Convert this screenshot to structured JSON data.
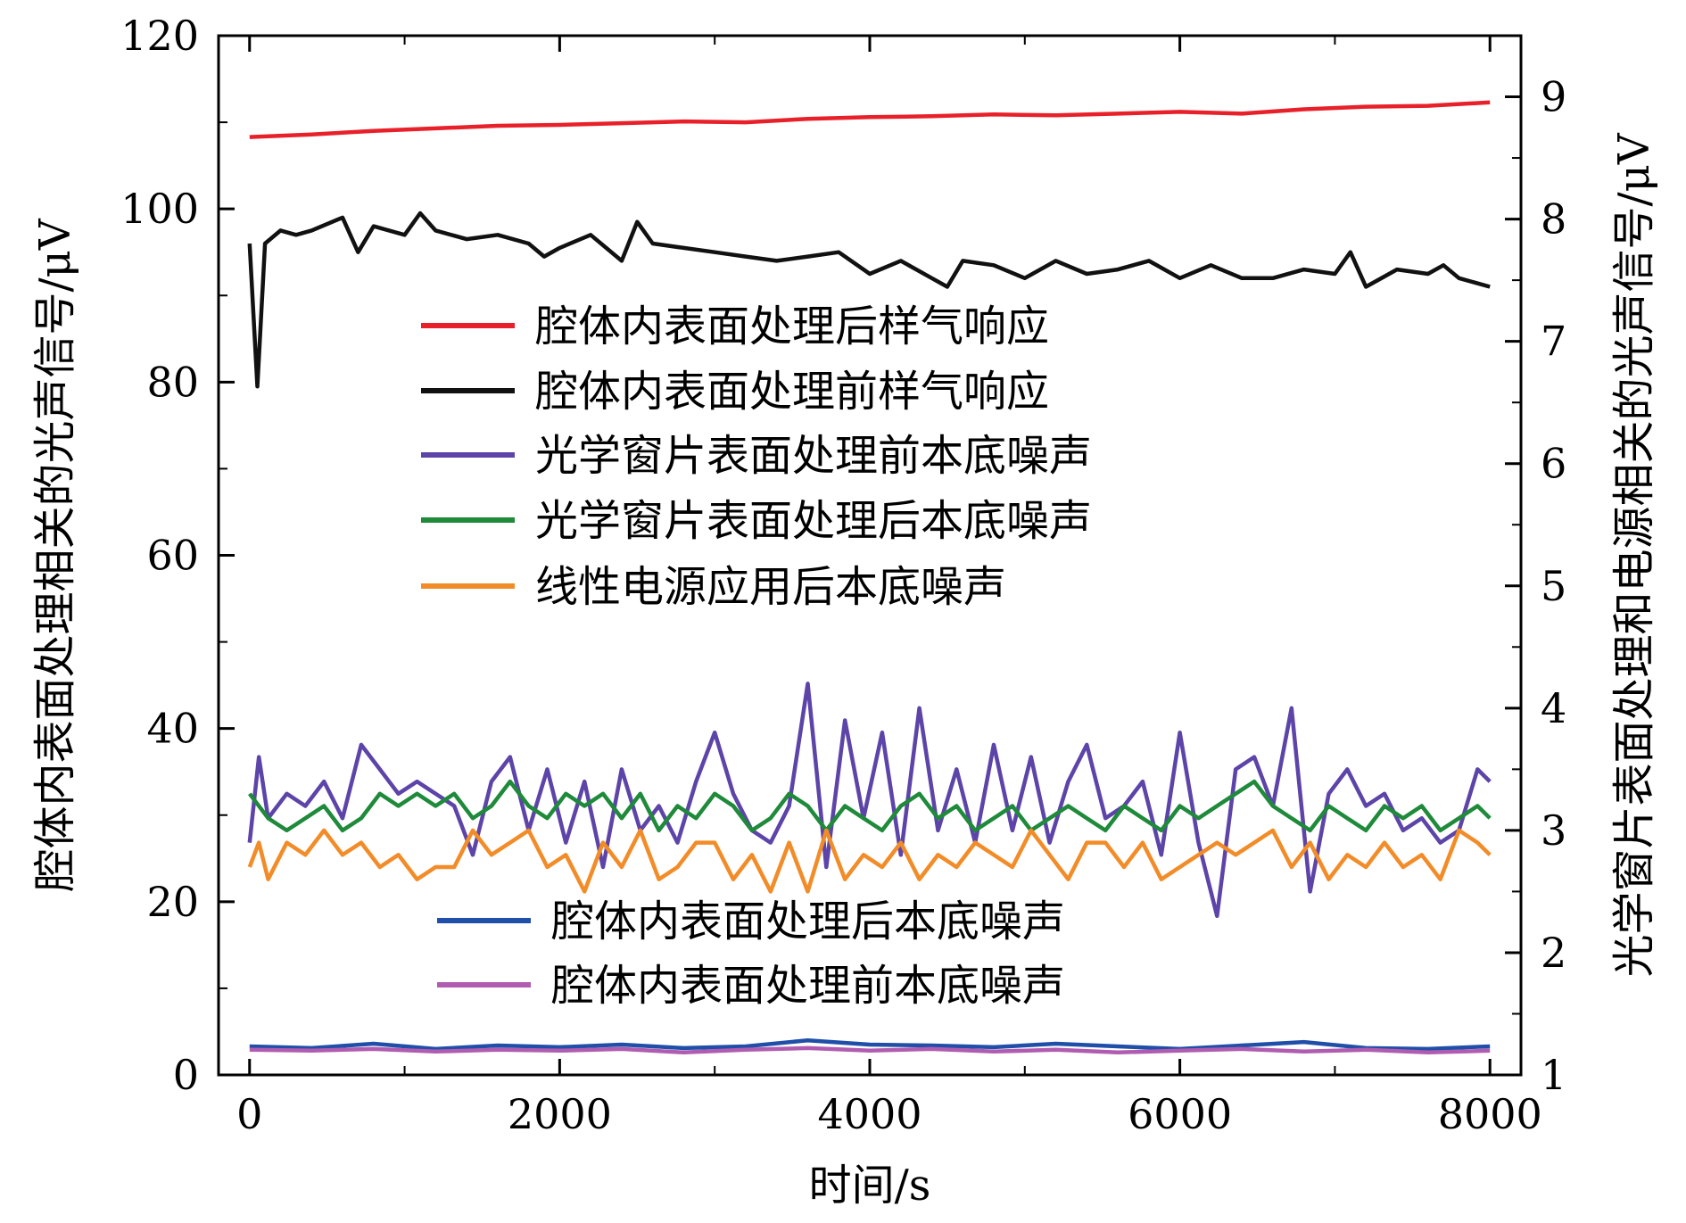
{
  "chart_data": {
    "type": "line",
    "xlabel": "时间/s",
    "ylabel_left": "腔体内表面处理相关的光声信号/μV",
    "ylabel_right": "光学窗片表面处理和电源相关的光声信号/μV",
    "xlim": [
      -200,
      8200
    ],
    "ylim_left": [
      0,
      120
    ],
    "ylim_right": [
      1,
      9.5
    ],
    "x_ticks": [
      0,
      2000,
      4000,
      6000,
      8000
    ],
    "y_ticks_left": [
      0,
      20,
      40,
      60,
      80,
      100,
      120
    ],
    "y_ticks_right": [
      1,
      2,
      3,
      4,
      5,
      6,
      7,
      8,
      9
    ],
    "x_tick_labels": [
      "0",
      "2000",
      "4000",
      "6000",
      "8000"
    ],
    "y_tick_labels_left": [
      "0",
      "20",
      "40",
      "60",
      "80",
      "100",
      "120"
    ],
    "y_tick_labels_right": [
      "1",
      "2",
      "3",
      "4",
      "5",
      "6",
      "7",
      "8",
      "9"
    ],
    "grid": false,
    "series": [
      {
        "name": "腔体内表面处理后样气响应",
        "color": "#e8202a",
        "axis": "left",
        "x": [
          0,
          400,
          800,
          1200,
          1600,
          2000,
          2400,
          2800,
          3200,
          3600,
          4000,
          4400,
          4800,
          5200,
          5600,
          6000,
          6400,
          6800,
          7200,
          7600,
          8000
        ],
        "values": [
          108.3,
          108.6,
          109.0,
          109.3,
          109.6,
          109.7,
          109.9,
          110.1,
          110.0,
          110.4,
          110.6,
          110.7,
          110.9,
          110.8,
          111.0,
          111.2,
          111.0,
          111.5,
          111.8,
          111.9,
          112.3
        ]
      },
      {
        "name": "腔体内表面处理前样气响应",
        "color": "#111111",
        "axis": "left",
        "x": [
          0,
          50,
          100,
          200,
          300,
          400,
          600,
          700,
          800,
          1000,
          1100,
          1200,
          1400,
          1600,
          1800,
          1900,
          2000,
          2200,
          2400,
          2500,
          2600,
          2800,
          3000,
          3200,
          3400,
          3600,
          3800,
          4000,
          4200,
          4400,
          4500,
          4600,
          4800,
          5000,
          5200,
          5400,
          5600,
          5800,
          6000,
          6200,
          6400,
          6600,
          6800,
          7000,
          7100,
          7200,
          7400,
          7600,
          7700,
          7800,
          8000
        ],
        "values": [
          96,
          79.5,
          96,
          97.5,
          97,
          97.5,
          99,
          95,
          98,
          97,
          99.5,
          97.5,
          96.5,
          97,
          96,
          94.5,
          95.5,
          97,
          94,
          98.5,
          96,
          95.5,
          95,
          94.5,
          94,
          94.5,
          95,
          92.5,
          94,
          92,
          91,
          94,
          93.5,
          92,
          94,
          92.5,
          93,
          94,
          92,
          93.5,
          92,
          92,
          93,
          92.5,
          95,
          91,
          93,
          92.5,
          93.5,
          92,
          91
        ]
      },
      {
        "name": "光学窗片表面处理前本底噪声",
        "color": "#5d44a8",
        "axis": "right",
        "x": [
          0,
          60,
          120,
          240,
          360,
          480,
          600,
          720,
          840,
          960,
          1080,
          1200,
          1320,
          1440,
          1560,
          1680,
          1800,
          1920,
          2040,
          2160,
          2280,
          2400,
          2520,
          2640,
          2760,
          2880,
          3000,
          3120,
          3240,
          3360,
          3480,
          3600,
          3720,
          3840,
          3960,
          4080,
          4200,
          4320,
          4440,
          4560,
          4680,
          4800,
          4920,
          5040,
          5160,
          5280,
          5400,
          5520,
          5640,
          5760,
          5880,
          6000,
          6120,
          6240,
          6360,
          6480,
          6600,
          6720,
          6840,
          6960,
          7080,
          7200,
          7320,
          7440,
          7560,
          7680,
          7800,
          7920,
          8000
        ],
        "values": [
          2.9,
          3.6,
          3.1,
          3.3,
          3.2,
          3.4,
          3.1,
          3.7,
          3.5,
          3.3,
          3.4,
          3.3,
          3.2,
          2.8,
          3.4,
          3.6,
          3.0,
          3.5,
          2.9,
          3.4,
          2.7,
          3.5,
          3.0,
          3.2,
          2.9,
          3.4,
          3.8,
          3.3,
          3.0,
          2.9,
          3.2,
          4.2,
          2.7,
          3.9,
          3.1,
          3.8,
          2.8,
          4.0,
          3.0,
          3.5,
          2.9,
          3.7,
          3.0,
          3.6,
          2.9,
          3.4,
          3.7,
          3.1,
          3.2,
          3.4,
          2.8,
          3.8,
          2.9,
          2.3,
          3.5,
          3.6,
          3.2,
          4.0,
          2.5,
          3.3,
          3.5,
          3.2,
          3.3,
          3.0,
          3.1,
          2.9,
          3.0,
          3.5,
          3.4
        ]
      },
      {
        "name": "光学窗片表面处理后本底噪声",
        "color": "#1e8a3a",
        "axis": "right",
        "x": [
          0,
          120,
          240,
          360,
          480,
          600,
          720,
          840,
          960,
          1080,
          1200,
          1320,
          1440,
          1560,
          1680,
          1800,
          1920,
          2040,
          2160,
          2280,
          2400,
          2520,
          2640,
          2760,
          2880,
          3000,
          3120,
          3240,
          3360,
          3480,
          3600,
          3720,
          3840,
          3960,
          4080,
          4200,
          4320,
          4440,
          4560,
          4680,
          4800,
          4920,
          5040,
          5160,
          5280,
          5400,
          5520,
          5640,
          5760,
          5880,
          6000,
          6120,
          6240,
          6360,
          6480,
          6600,
          6720,
          6840,
          6960,
          7080,
          7200,
          7320,
          7440,
          7560,
          7680,
          7800,
          7920,
          8000
        ],
        "values": [
          3.3,
          3.1,
          3.0,
          3.1,
          3.2,
          3.0,
          3.1,
          3.3,
          3.2,
          3.3,
          3.2,
          3.3,
          3.1,
          3.2,
          3.4,
          3.2,
          3.1,
          3.3,
          3.2,
          3.3,
          3.1,
          3.3,
          3.0,
          3.2,
          3.1,
          3.3,
          3.2,
          3.0,
          3.1,
          3.3,
          3.2,
          3.0,
          3.2,
          3.1,
          3.0,
          3.2,
          3.3,
          3.1,
          3.2,
          3.0,
          3.1,
          3.2,
          3.0,
          3.1,
          3.2,
          3.1,
          3.0,
          3.2,
          3.1,
          3.0,
          3.2,
          3.1,
          3.2,
          3.3,
          3.4,
          3.2,
          3.1,
          3.0,
          3.2,
          3.1,
          3.0,
          3.2,
          3.1,
          3.2,
          3.0,
          3.1,
          3.2,
          3.1
        ]
      },
      {
        "name": "线性电源应用后本底噪声",
        "color": "#f28c28",
        "axis": "right",
        "x": [
          0,
          60,
          120,
          240,
          360,
          480,
          600,
          720,
          840,
          960,
          1080,
          1200,
          1320,
          1440,
          1560,
          1680,
          1800,
          1920,
          2040,
          2160,
          2280,
          2400,
          2520,
          2640,
          2760,
          2880,
          3000,
          3120,
          3240,
          3360,
          3480,
          3600,
          3720,
          3840,
          3960,
          4080,
          4200,
          4320,
          4440,
          4560,
          4680,
          4800,
          4920,
          5040,
          5160,
          5280,
          5400,
          5520,
          5640,
          5760,
          5880,
          6000,
          6120,
          6240,
          6360,
          6480,
          6600,
          6720,
          6840,
          6960,
          7080,
          7200,
          7320,
          7440,
          7560,
          7680,
          7800,
          7920,
          8000
        ],
        "values": [
          2.7,
          2.9,
          2.6,
          2.9,
          2.8,
          3.0,
          2.8,
          2.9,
          2.7,
          2.8,
          2.6,
          2.7,
          2.7,
          3.0,
          2.8,
          2.9,
          3.0,
          2.7,
          2.8,
          2.5,
          2.9,
          2.7,
          3.0,
          2.6,
          2.7,
          2.9,
          2.9,
          2.6,
          2.8,
          2.5,
          2.9,
          2.5,
          3.0,
          2.6,
          2.8,
          2.7,
          2.9,
          2.6,
          2.8,
          2.7,
          2.9,
          2.8,
          2.7,
          3.0,
          2.8,
          2.6,
          2.9,
          2.9,
          2.7,
          2.9,
          2.6,
          2.7,
          2.8,
          2.9,
          2.8,
          2.9,
          3.0,
          2.7,
          2.9,
          2.6,
          2.8,
          2.7,
          2.9,
          2.7,
          2.8,
          2.6,
          3.0,
          2.9,
          2.8
        ]
      },
      {
        "name": "腔体内表面处理后本底噪声",
        "color": "#1f4fa8",
        "axis": "left",
        "x": [
          0,
          400,
          800,
          1200,
          1600,
          2000,
          2400,
          2800,
          3200,
          3600,
          4000,
          4400,
          4800,
          5200,
          5600,
          6000,
          6400,
          6800,
          7200,
          7600,
          8000
        ],
        "values": [
          3.3,
          3.1,
          3.6,
          3.0,
          3.4,
          3.2,
          3.5,
          3.1,
          3.3,
          4.0,
          3.5,
          3.4,
          3.2,
          3.6,
          3.3,
          3.0,
          3.4,
          3.8,
          3.1,
          3.0,
          3.3
        ]
      },
      {
        "name": "腔体内表面处理前本底噪声",
        "color": "#b05cb0",
        "axis": "left",
        "x": [
          0,
          400,
          800,
          1200,
          1600,
          2000,
          2400,
          2800,
          3200,
          3600,
          4000,
          4400,
          4800,
          5200,
          5600,
          6000,
          6400,
          6800,
          7200,
          7600,
          8000
        ],
        "values": [
          2.9,
          2.8,
          3.0,
          2.7,
          2.9,
          2.8,
          3.0,
          2.6,
          2.9,
          3.1,
          2.8,
          3.0,
          2.7,
          2.9,
          2.6,
          2.8,
          3.0,
          2.7,
          2.9,
          2.6,
          2.8
        ]
      }
    ]
  }
}
